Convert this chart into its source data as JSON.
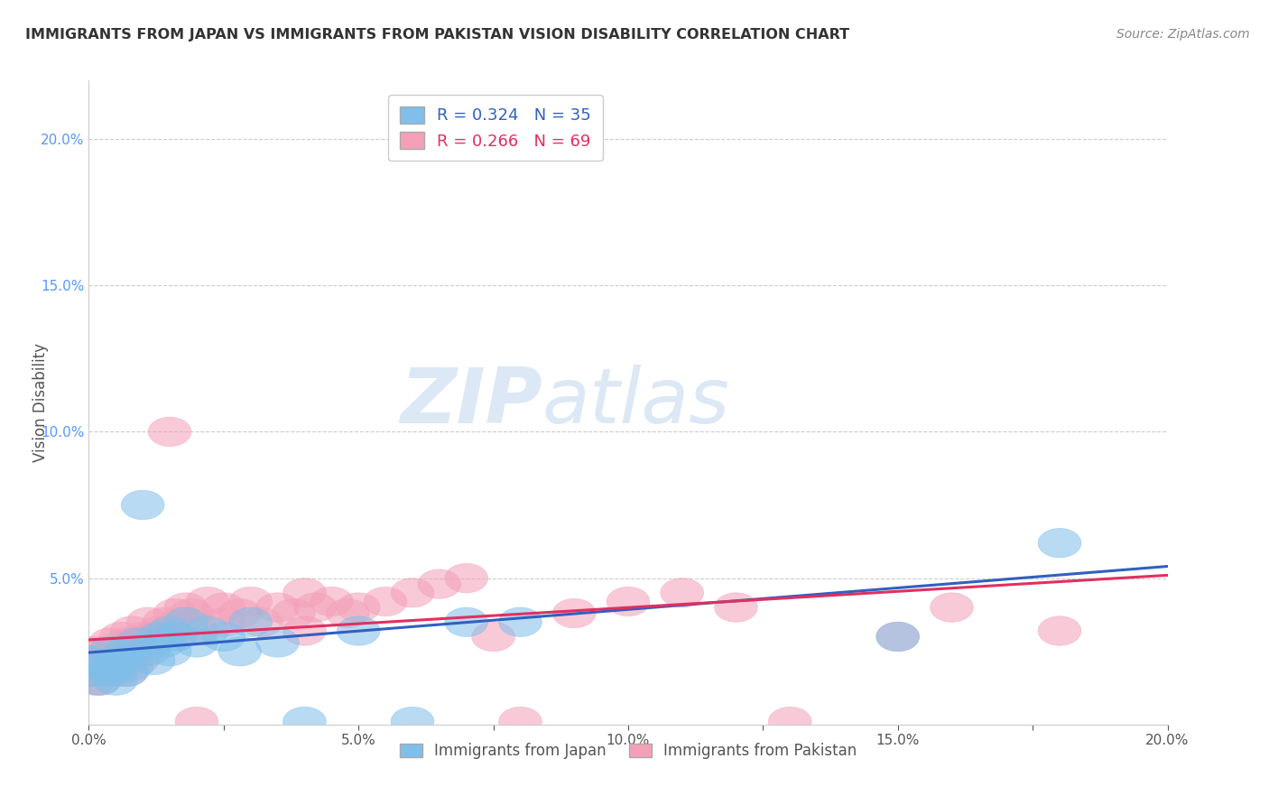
{
  "title": "IMMIGRANTS FROM JAPAN VS IMMIGRANTS FROM PAKISTAN VISION DISABILITY CORRELATION CHART",
  "source": "Source: ZipAtlas.com",
  "xlabel_japan": "Immigrants from Japan",
  "xlabel_pakistan": "Immigrants from Pakistan",
  "ylabel": "Vision Disability",
  "xlim": [
    0.0,
    0.2
  ],
  "ylim": [
    0.0,
    0.22
  ],
  "japan_R": 0.324,
  "japan_N": 35,
  "pakistan_R": 0.266,
  "pakistan_N": 69,
  "japan_color": "#7fbfea",
  "pakistan_color": "#f4a0b8",
  "japan_trend_color": "#3060c0",
  "pakistan_trend_color": "#e03060",
  "japan_scatter": [
    [
      0.0,
      0.022
    ],
    [
      0.001,
      0.018
    ],
    [
      0.002,
      0.015
    ],
    [
      0.003,
      0.02
    ],
    [
      0.004,
      0.018
    ],
    [
      0.004,
      0.025
    ],
    [
      0.005,
      0.02
    ],
    [
      0.005,
      0.015
    ],
    [
      0.006,
      0.022
    ],
    [
      0.007,
      0.018
    ],
    [
      0.007,
      0.025
    ],
    [
      0.008,
      0.02
    ],
    [
      0.009,
      0.028
    ],
    [
      0.01,
      0.075
    ],
    [
      0.011,
      0.025
    ],
    [
      0.012,
      0.022
    ],
    [
      0.013,
      0.03
    ],
    [
      0.014,
      0.028
    ],
    [
      0.015,
      0.032
    ],
    [
      0.015,
      0.025
    ],
    [
      0.016,
      0.03
    ],
    [
      0.018,
      0.035
    ],
    [
      0.02,
      0.028
    ],
    [
      0.022,
      0.032
    ],
    [
      0.025,
      0.03
    ],
    [
      0.028,
      0.025
    ],
    [
      0.03,
      0.035
    ],
    [
      0.035,
      0.028
    ],
    [
      0.04,
      0.0
    ],
    [
      0.05,
      0.032
    ],
    [
      0.06,
      0.0
    ],
    [
      0.07,
      0.035
    ],
    [
      0.08,
      0.035
    ],
    [
      0.15,
      0.03
    ],
    [
      0.18,
      0.062
    ]
  ],
  "pakistan_scatter": [
    [
      0.0,
      0.022
    ],
    [
      0.0,
      0.018
    ],
    [
      0.001,
      0.015
    ],
    [
      0.001,
      0.02
    ],
    [
      0.001,
      0.025
    ],
    [
      0.002,
      0.018
    ],
    [
      0.002,
      0.022
    ],
    [
      0.002,
      0.015
    ],
    [
      0.003,
      0.02
    ],
    [
      0.003,
      0.025
    ],
    [
      0.003,
      0.018
    ],
    [
      0.004,
      0.022
    ],
    [
      0.004,
      0.028
    ],
    [
      0.004,
      0.02
    ],
    [
      0.005,
      0.025
    ],
    [
      0.005,
      0.018
    ],
    [
      0.005,
      0.022
    ],
    [
      0.006,
      0.02
    ],
    [
      0.006,
      0.025
    ],
    [
      0.006,
      0.03
    ],
    [
      0.007,
      0.022
    ],
    [
      0.007,
      0.028
    ],
    [
      0.007,
      0.018
    ],
    [
      0.008,
      0.025
    ],
    [
      0.008,
      0.032
    ],
    [
      0.009,
      0.022
    ],
    [
      0.009,
      0.028
    ],
    [
      0.01,
      0.025
    ],
    [
      0.01,
      0.03
    ],
    [
      0.011,
      0.035
    ],
    [
      0.012,
      0.03
    ],
    [
      0.013,
      0.032
    ],
    [
      0.014,
      0.035
    ],
    [
      0.015,
      0.032
    ],
    [
      0.015,
      0.1
    ],
    [
      0.016,
      0.038
    ],
    [
      0.017,
      0.035
    ],
    [
      0.018,
      0.04
    ],
    [
      0.019,
      0.038
    ],
    [
      0.02,
      0.032
    ],
    [
      0.02,
      0.0
    ],
    [
      0.022,
      0.042
    ],
    [
      0.025,
      0.035
    ],
    [
      0.025,
      0.04
    ],
    [
      0.028,
      0.038
    ],
    [
      0.03,
      0.042
    ],
    [
      0.032,
      0.035
    ],
    [
      0.035,
      0.04
    ],
    [
      0.038,
      0.038
    ],
    [
      0.04,
      0.032
    ],
    [
      0.04,
      0.045
    ],
    [
      0.042,
      0.04
    ],
    [
      0.045,
      0.042
    ],
    [
      0.048,
      0.038
    ],
    [
      0.05,
      0.04
    ],
    [
      0.055,
      0.042
    ],
    [
      0.06,
      0.045
    ],
    [
      0.065,
      0.048
    ],
    [
      0.07,
      0.05
    ],
    [
      0.075,
      0.03
    ],
    [
      0.08,
      0.0
    ],
    [
      0.09,
      0.038
    ],
    [
      0.1,
      0.042
    ],
    [
      0.11,
      0.045
    ],
    [
      0.12,
      0.04
    ],
    [
      0.13,
      0.0
    ],
    [
      0.15,
      0.03
    ],
    [
      0.16,
      0.04
    ],
    [
      0.18,
      0.032
    ]
  ],
  "xtick_labels": [
    "0.0%",
    "",
    "5.0%",
    "",
    "10.0%",
    "",
    "15.0%",
    "",
    "20.0%"
  ],
  "xtick_values": [
    0.0,
    0.025,
    0.05,
    0.075,
    0.1,
    0.125,
    0.15,
    0.175,
    0.2
  ],
  "ytick_labels": [
    "5.0%",
    "10.0%",
    "15.0%",
    "20.0%"
  ],
  "ytick_values": [
    0.05,
    0.1,
    0.15,
    0.2
  ],
  "watermark_zip": "ZIP",
  "watermark_atlas": "atlas",
  "background_color": "#ffffff",
  "grid_color": "#cccccc"
}
